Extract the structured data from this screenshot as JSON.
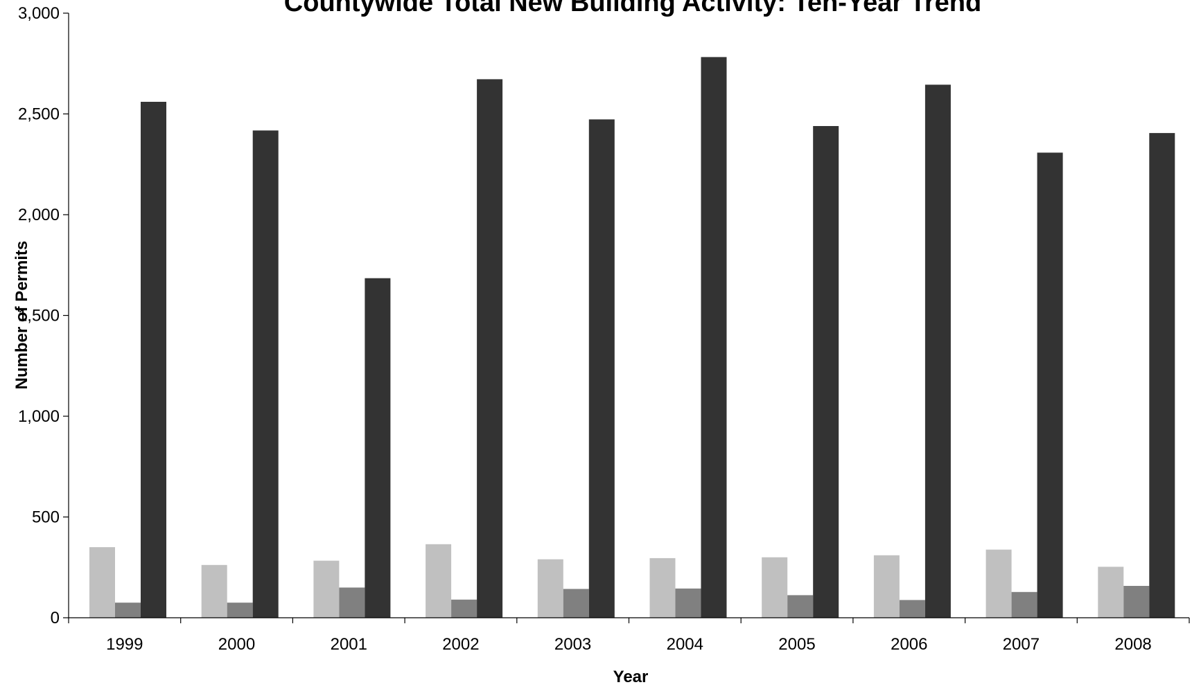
{
  "chart_data": {
    "type": "bar",
    "title": "Countywide Total New Building Activity: Ten-Year Trend",
    "xlabel": "Year",
    "ylabel": "Number of Permits",
    "ylim": [
      0,
      3000
    ],
    "yticks": [
      0,
      500,
      1000,
      1500,
      2000,
      2500,
      3000
    ],
    "ytick_labels": [
      "0",
      "500",
      "1,000",
      "1,500",
      "2,000",
      "2,500",
      "3,000"
    ],
    "categories": [
      "1999",
      "2000",
      "2001",
      "2002",
      "2003",
      "2004",
      "2005",
      "2006",
      "2007",
      "2008"
    ],
    "series": [
      {
        "color": "#c0c0c0",
        "values": [
          350,
          262,
          283,
          365,
          290,
          296,
          300,
          310,
          338,
          253
        ]
      },
      {
        "color": "#808080",
        "values": [
          75,
          75,
          150,
          90,
          143,
          145,
          112,
          88,
          128,
          158
        ]
      },
      {
        "color": "#333333",
        "values": [
          2560,
          2418,
          1685,
          2672,
          2473,
          2782,
          2440,
          2645,
          2308,
          2405
        ]
      }
    ],
    "grid": false,
    "legend": "none"
  }
}
